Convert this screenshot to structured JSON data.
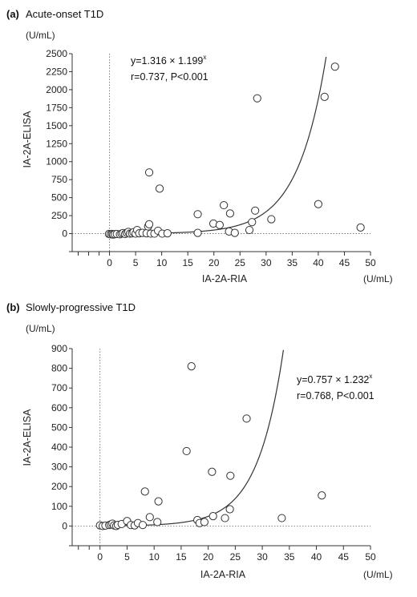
{
  "chart_data": [
    {
      "type": "scatter",
      "panel_letter": "(a)",
      "title": "Acute-onset T1D",
      "xlabel": "IA-2A-RIA",
      "ylabel": "IA-2A-ELISA",
      "x_unit": "(U/mL)",
      "y_unit": "(U/mL)",
      "xlim": [
        -7,
        50
      ],
      "ylim": [
        -250,
        2500
      ],
      "xticks": [
        0,
        5,
        10,
        15,
        20,
        25,
        30,
        35,
        40,
        45,
        50
      ],
      "yticks": [
        0,
        250,
        500,
        750,
        1000,
        1250,
        1500,
        1750,
        2000,
        2250,
        2500
      ],
      "fit": {
        "a": 1.316,
        "b": 1.199
      },
      "equation_label": "y=1.316 × 1.199",
      "equation_exp": "x",
      "stats_label": "r=0.737, P<0.001",
      "grid": false,
      "points": [
        [
          -0.1,
          -5
        ],
        [
          0.2,
          -10
        ],
        [
          0.5,
          -5
        ],
        [
          0.7,
          -12
        ],
        [
          1.0,
          -8
        ],
        [
          1.4,
          -5
        ],
        [
          2.0,
          -10
        ],
        [
          2.3,
          0
        ],
        [
          2.6,
          8
        ],
        [
          3.0,
          -5
        ],
        [
          3.3,
          12
        ],
        [
          3.6,
          25
        ],
        [
          3.9,
          0
        ],
        [
          4.3,
          5
        ],
        [
          4.6,
          20
        ],
        [
          5.0,
          0
        ],
        [
          5.3,
          50
        ],
        [
          5.7,
          5
        ],
        [
          6.3,
          10
        ],
        [
          7.1,
          5
        ],
        [
          7.4,
          100
        ],
        [
          7.6,
          130
        ],
        [
          7.9,
          0
        ],
        [
          8.6,
          0
        ],
        [
          9.3,
          40
        ],
        [
          9.6,
          625
        ],
        [
          10.1,
          0
        ],
        [
          11.1,
          5
        ],
        [
          7.6,
          850
        ],
        [
          16.9,
          270
        ],
        [
          16.9,
          10
        ],
        [
          19.9,
          140
        ],
        [
          21.1,
          120
        ],
        [
          21.9,
          395
        ],
        [
          23.1,
          280
        ],
        [
          22.9,
          30
        ],
        [
          24.0,
          10
        ],
        [
          26.8,
          50
        ],
        [
          27.3,
          160
        ],
        [
          27.9,
          320
        ],
        [
          28.3,
          1880
        ],
        [
          31.0,
          200
        ],
        [
          40.0,
          410
        ],
        [
          41.2,
          1900
        ],
        [
          43.2,
          2320
        ],
        [
          48.1,
          85
        ]
      ]
    },
    {
      "type": "scatter",
      "panel_letter": "(b)",
      "title": "Slowly-progressive T1D",
      "xlabel": "IA-2A-RIA",
      "ylabel": "IA-2A-ELISA",
      "x_unit": "(U/mL)",
      "y_unit": "(U/mL)",
      "xlim": [
        -5,
        50
      ],
      "ylim": [
        -100,
        900
      ],
      "xticks": [
        0,
        5,
        10,
        15,
        20,
        25,
        30,
        35,
        40,
        45,
        50
      ],
      "yticks": [
        0,
        100,
        200,
        300,
        400,
        500,
        600,
        700,
        800,
        900
      ],
      "fit": {
        "a": 0.757,
        "b": 1.232
      },
      "equation_label": "y=0.757 × 1.232",
      "equation_exp": "x",
      "stats_label": "r=0.768, P<0.001",
      "grid": false,
      "points": [
        [
          0.0,
          3
        ],
        [
          0.5,
          0
        ],
        [
          1.0,
          2
        ],
        [
          1.7,
          5
        ],
        [
          2.0,
          8
        ],
        [
          2.3,
          12
        ],
        [
          2.6,
          3
        ],
        [
          3.0,
          0
        ],
        [
          3.3,
          6
        ],
        [
          4.0,
          10
        ],
        [
          5.0,
          25
        ],
        [
          5.7,
          5
        ],
        [
          6.4,
          3
        ],
        [
          7.0,
          15
        ],
        [
          7.9,
          5
        ],
        [
          8.3,
          175
        ],
        [
          9.2,
          45
        ],
        [
          10.6,
          20
        ],
        [
          10.8,
          125
        ],
        [
          16.0,
          380
        ],
        [
          16.9,
          810
        ],
        [
          18.0,
          30
        ],
        [
          18.4,
          15
        ],
        [
          19.3,
          20
        ],
        [
          20.7,
          275
        ],
        [
          20.9,
          50
        ],
        [
          23.1,
          40
        ],
        [
          24.0,
          85
        ],
        [
          24.1,
          255
        ],
        [
          27.1,
          545
        ],
        [
          33.6,
          40
        ],
        [
          41.0,
          155
        ]
      ]
    }
  ]
}
